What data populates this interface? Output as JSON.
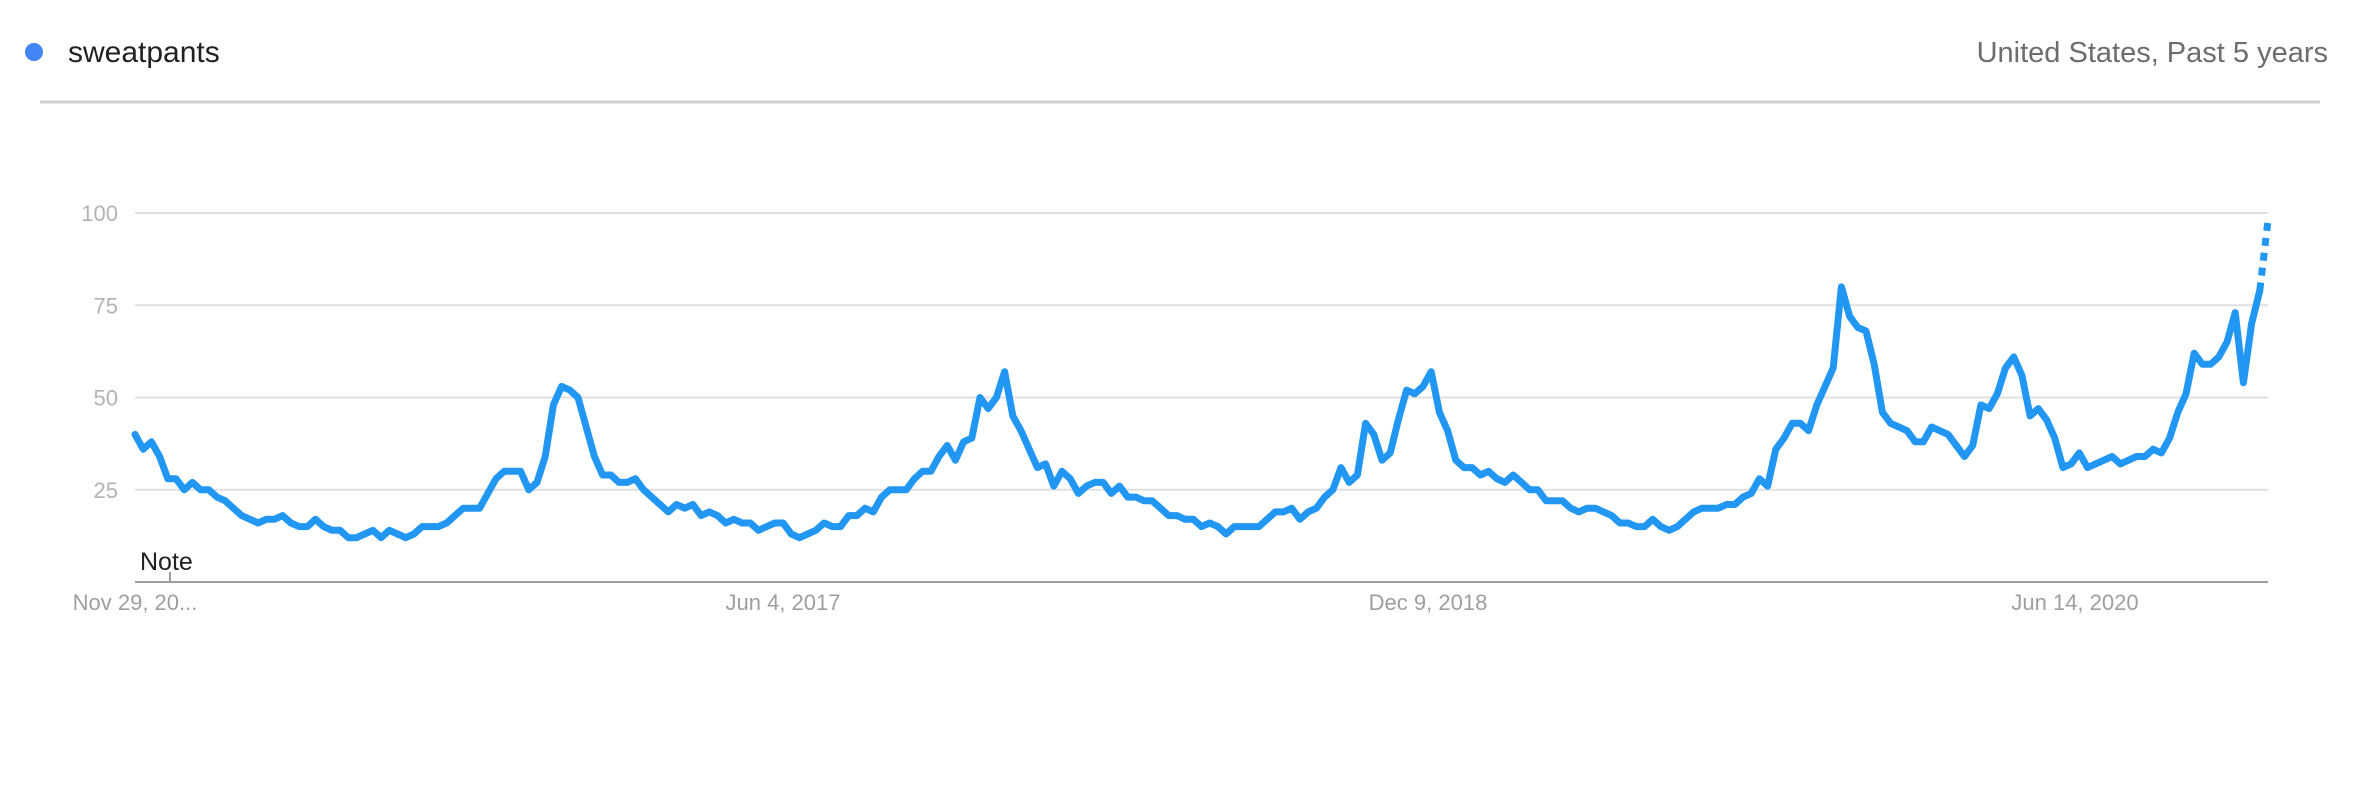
{
  "header": {
    "term": "sweatpants",
    "info": "United States, Past 5 years"
  },
  "note": "Note",
  "colors": {
    "series": "#2196f3",
    "marker": "#4285f4",
    "grid": "#e0e0e0",
    "axis": "#9e9e9e"
  },
  "chart_data": {
    "type": "line",
    "ylim": [
      0,
      100
    ],
    "yticks": [
      25,
      50,
      75,
      100
    ],
    "xtick_labels": [
      "Nov 29, 20...",
      "Jun 4, 2017",
      "Dec 9, 2018",
      "Jun 14, 2020"
    ],
    "grid": true,
    "partial_last_point": true,
    "series": [
      {
        "name": "sweatpants",
        "values": [
          40,
          36,
          38,
          34,
          28,
          28,
          25,
          27,
          25,
          25,
          23,
          22,
          20,
          18,
          17,
          16,
          17,
          17,
          18,
          16,
          15,
          15,
          17,
          15,
          14,
          14,
          12,
          12,
          13,
          14,
          12,
          14,
          13,
          12,
          13,
          15,
          15,
          15,
          16,
          18,
          20,
          20,
          20,
          24,
          28,
          30,
          30,
          30,
          25,
          27,
          34,
          48,
          53,
          52,
          50,
          42,
          34,
          29,
          29,
          27,
          27,
          28,
          25,
          23,
          21,
          19,
          21,
          20,
          21,
          18,
          19,
          18,
          16,
          17,
          16,
          16,
          14,
          15,
          16,
          16,
          13,
          12,
          13,
          14,
          16,
          15,
          15,
          18,
          18,
          20,
          19,
          23,
          25,
          25,
          25,
          28,
          30,
          30,
          34,
          37,
          33,
          38,
          39,
          50,
          47,
          50,
          57,
          45,
          41,
          36,
          31,
          32,
          26,
          30,
          28,
          24,
          26,
          27,
          27,
          24,
          26,
          23,
          23,
          22,
          22,
          20,
          18,
          18,
          17,
          17,
          15,
          16,
          15,
          13,
          15,
          15,
          15,
          15,
          17,
          19,
          19,
          20,
          17,
          19,
          20,
          23,
          25,
          31,
          27,
          29,
          43,
          40,
          33,
          35,
          44,
          52,
          51,
          53,
          57,
          46,
          41,
          33,
          31,
          31,
          29,
          30,
          28,
          27,
          29,
          27,
          25,
          25,
          22,
          22,
          22,
          20,
          19,
          20,
          20,
          19,
          18,
          16,
          16,
          15,
          15,
          17,
          15,
          14,
          15,
          17,
          19,
          20,
          20,
          20,
          21,
          21,
          23,
          24,
          28,
          26,
          36,
          39,
          43,
          43,
          41,
          48,
          53,
          58,
          80,
          72,
          69,
          68,
          59,
          46,
          43,
          42,
          41,
          38,
          38,
          42,
          41,
          40,
          37,
          34,
          37,
          48,
          47,
          51,
          58,
          61,
          56,
          45,
          47,
          44,
          39,
          31,
          32,
          35,
          31,
          32,
          33,
          34,
          32,
          33,
          34,
          34,
          36,
          35,
          39,
          46,
          51,
          62,
          59,
          59,
          61,
          65,
          73,
          54,
          70,
          79,
          98
        ]
      }
    ]
  }
}
